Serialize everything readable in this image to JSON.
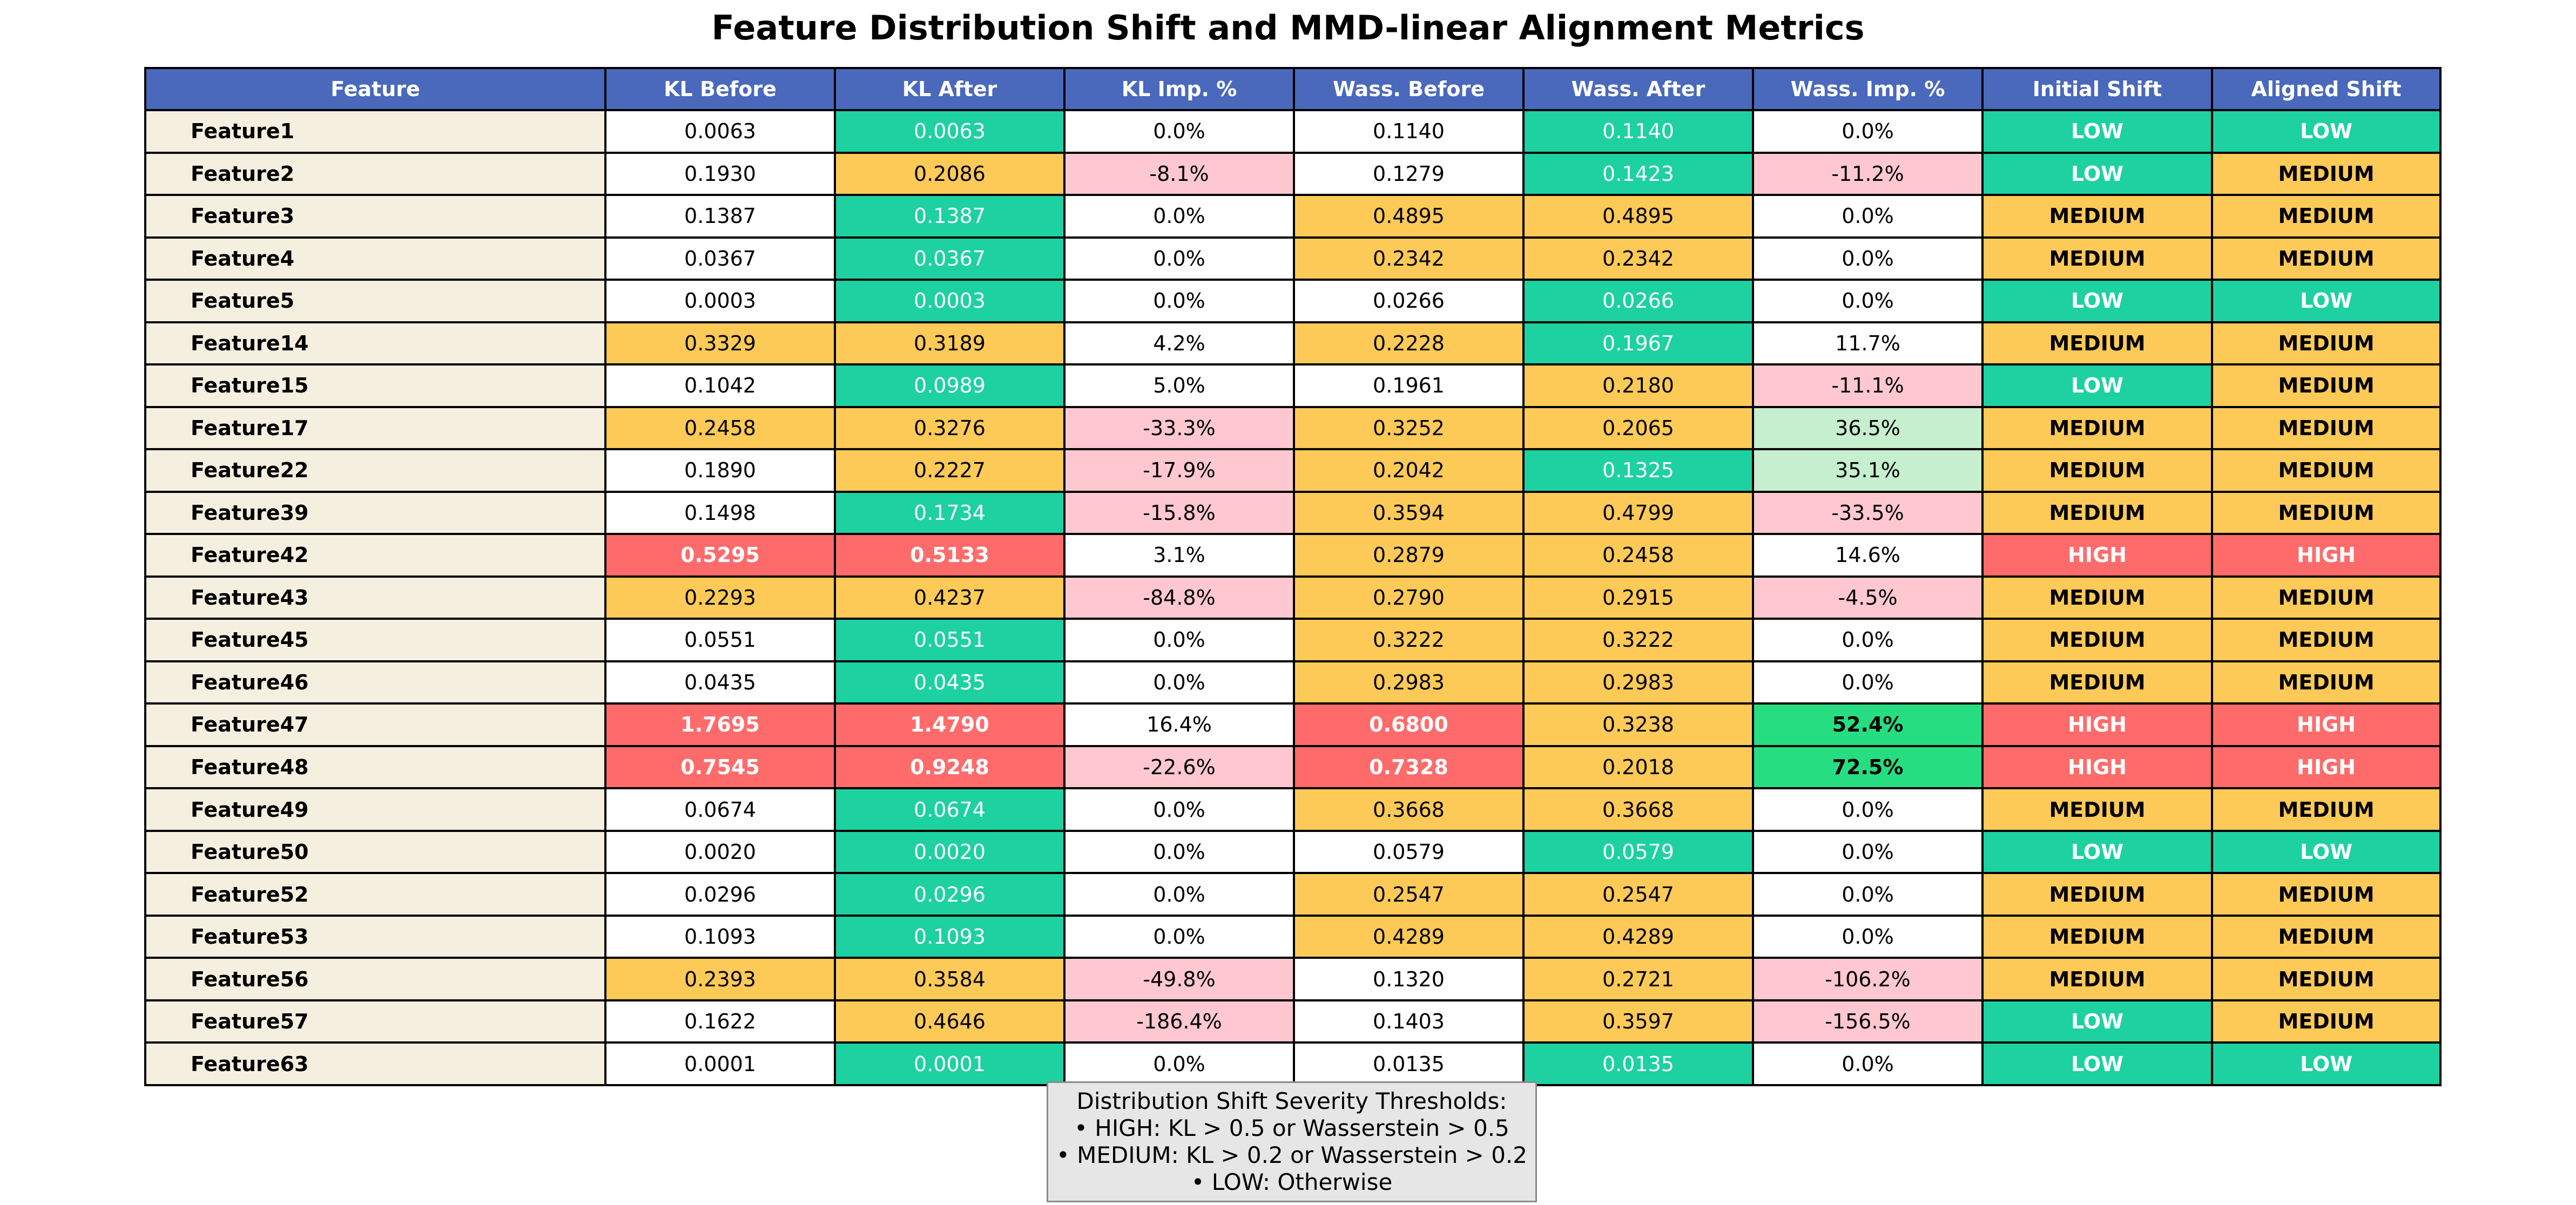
{
  "chart_data": {
    "type": "table",
    "title": "Feature Distribution Shift and MMD-linear Alignment Metrics",
    "columns": [
      "Feature",
      "KL Before",
      "KL After",
      "KL Imp. %",
      "Wass. Before",
      "Wass. After",
      "Wass. Imp. %",
      "Initial Shift",
      "Aligned Shift"
    ],
    "rows": [
      [
        "Feature1",
        "0.0063",
        "0.0063",
        "0.0%",
        "0.1140",
        "0.1140",
        "0.0%",
        "LOW",
        "LOW"
      ],
      [
        "Feature2",
        "0.1930",
        "0.2086",
        "-8.1%",
        "0.1279",
        "0.1423",
        "-11.2%",
        "LOW",
        "MEDIUM"
      ],
      [
        "Feature3",
        "0.1387",
        "0.1387",
        "0.0%",
        "0.4895",
        "0.4895",
        "0.0%",
        "MEDIUM",
        "MEDIUM"
      ],
      [
        "Feature4",
        "0.0367",
        "0.0367",
        "0.0%",
        "0.2342",
        "0.2342",
        "0.0%",
        "MEDIUM",
        "MEDIUM"
      ],
      [
        "Feature5",
        "0.0003",
        "0.0003",
        "0.0%",
        "0.0266",
        "0.0266",
        "0.0%",
        "LOW",
        "LOW"
      ],
      [
        "Feature14",
        "0.3329",
        "0.3189",
        "4.2%",
        "0.2228",
        "0.1967",
        "11.7%",
        "MEDIUM",
        "MEDIUM"
      ],
      [
        "Feature15",
        "0.1042",
        "0.0989",
        "5.0%",
        "0.1961",
        "0.2180",
        "-11.1%",
        "LOW",
        "MEDIUM"
      ],
      [
        "Feature17",
        "0.2458",
        "0.3276",
        "-33.3%",
        "0.3252",
        "0.2065",
        "36.5%",
        "MEDIUM",
        "MEDIUM"
      ],
      [
        "Feature22",
        "0.1890",
        "0.2227",
        "-17.9%",
        "0.2042",
        "0.1325",
        "35.1%",
        "MEDIUM",
        "MEDIUM"
      ],
      [
        "Feature39",
        "0.1498",
        "0.1734",
        "-15.8%",
        "0.3594",
        "0.4799",
        "-33.5%",
        "MEDIUM",
        "MEDIUM"
      ],
      [
        "Feature42",
        "0.5295",
        "0.5133",
        "3.1%",
        "0.2879",
        "0.2458",
        "14.6%",
        "HIGH",
        "HIGH"
      ],
      [
        "Feature43",
        "0.2293",
        "0.4237",
        "-84.8%",
        "0.2790",
        "0.2915",
        "-4.5%",
        "MEDIUM",
        "MEDIUM"
      ],
      [
        "Feature45",
        "0.0551",
        "0.0551",
        "0.0%",
        "0.3222",
        "0.3222",
        "0.0%",
        "MEDIUM",
        "MEDIUM"
      ],
      [
        "Feature46",
        "0.0435",
        "0.0435",
        "0.0%",
        "0.2983",
        "0.2983",
        "0.0%",
        "MEDIUM",
        "MEDIUM"
      ],
      [
        "Feature47",
        "1.7695",
        "1.4790",
        "16.4%",
        "0.6800",
        "0.3238",
        "52.4%",
        "HIGH",
        "HIGH"
      ],
      [
        "Feature48",
        "0.7545",
        "0.9248",
        "-22.6%",
        "0.7328",
        "0.2018",
        "72.5%",
        "HIGH",
        "HIGH"
      ],
      [
        "Feature49",
        "0.0674",
        "0.0674",
        "0.0%",
        "0.3668",
        "0.3668",
        "0.0%",
        "MEDIUM",
        "MEDIUM"
      ],
      [
        "Feature50",
        "0.0020",
        "0.0020",
        "0.0%",
        "0.0579",
        "0.0579",
        "0.0%",
        "LOW",
        "LOW"
      ],
      [
        "Feature52",
        "0.0296",
        "0.0296",
        "0.0%",
        "0.2547",
        "0.2547",
        "0.0%",
        "MEDIUM",
        "MEDIUM"
      ],
      [
        "Feature53",
        "0.1093",
        "0.1093",
        "0.0%",
        "0.4289",
        "0.4289",
        "0.0%",
        "MEDIUM",
        "MEDIUM"
      ],
      [
        "Feature56",
        "0.2393",
        "0.3584",
        "-49.8%",
        "0.1320",
        "0.2721",
        "-106.2%",
        "MEDIUM",
        "MEDIUM"
      ],
      [
        "Feature57",
        "0.1622",
        "0.4646",
        "-186.4%",
        "0.1403",
        "0.3597",
        "-156.5%",
        "LOW",
        "MEDIUM"
      ],
      [
        "Feature63",
        "0.0001",
        "0.0001",
        "0.0%",
        "0.0135",
        "0.0135",
        "0.0%",
        "LOW",
        "LOW"
      ]
    ],
    "thresholds_box": [
      "Distribution Shift Severity Thresholds:",
      "• HIGH: KL > 0.5 or Wasserstein > 0.5",
      "• MEDIUM: KL > 0.2 or Wasserstein > 0.2",
      "• LOW: Otherwise"
    ]
  },
  "colors": {
    "header_bg": "#4a69bd",
    "header_text": "#ffffff",
    "feature_bg": "#f5efe0",
    "white": "#ffffff",
    "low_green": "#1dd1a1",
    "medium_orange": "#feca57",
    "high_red": "#ff6b6b",
    "negative_pink": "#ffc8d0",
    "positive_light_green": "#c6efd0",
    "strong_green": "#26de81",
    "box_bg": "#e6e6e6"
  }
}
